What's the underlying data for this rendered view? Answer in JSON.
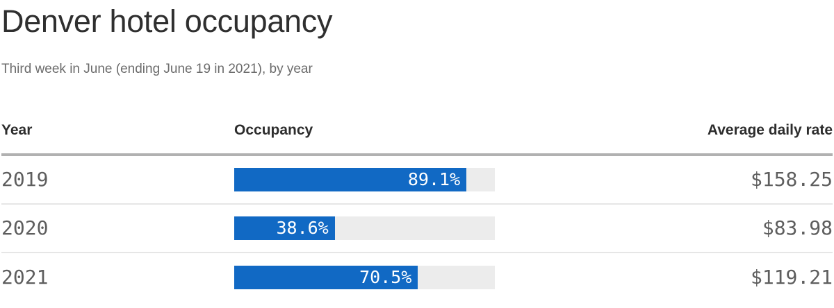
{
  "header": {
    "title": "Denver hotel occupancy",
    "subtitle": "Third week in June (ending June 19 in 2021), by year"
  },
  "table": {
    "columns": [
      "Year",
      "Occupancy",
      "Average daily rate"
    ],
    "rows": [
      {
        "year": "2019",
        "occupancy_pct": 89.1,
        "occupancy_label": "89.1%",
        "avg_daily_rate": "$158.25"
      },
      {
        "year": "2020",
        "occupancy_pct": 38.6,
        "occupancy_label": "38.6%",
        "avg_daily_rate": "$83.98"
      },
      {
        "year": "2021",
        "occupancy_pct": 70.5,
        "occupancy_label": "70.5%",
        "avg_daily_rate": "$119.21"
      }
    ]
  },
  "colors": {
    "bar_fill": "#1169c4",
    "bar_track": "#ececec",
    "title_text": "#2f2f2f",
    "subtitle_text": "#6b6b6b",
    "header_rule": "#b1b1b1",
    "row_divider": "#e6e6e6",
    "numeral_text": "#5e5e5e",
    "bar_label_text": "#ffffff"
  },
  "chart_data": {
    "type": "bar",
    "orientation": "horizontal",
    "title": "Denver hotel occupancy",
    "subtitle": "Third week in June (ending June 19 in 2021), by year",
    "categories": [
      "2019",
      "2020",
      "2021"
    ],
    "series": [
      {
        "name": "Occupancy",
        "unit": "%",
        "values": [
          89.1,
          38.6,
          70.5
        ]
      },
      {
        "name": "Average daily rate",
        "unit": "$",
        "values": [
          158.25,
          83.98,
          119.21
        ]
      }
    ],
    "xlim": [
      0,
      100
    ],
    "grid": false,
    "legend": false,
    "data_labels": [
      "89.1%",
      "38.6%",
      "70.5%"
    ],
    "value_labels": [
      "$158.25",
      "$83.98",
      "$119.21"
    ]
  }
}
